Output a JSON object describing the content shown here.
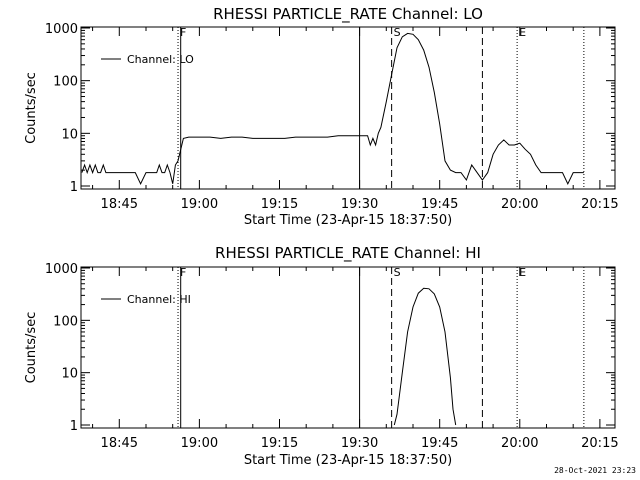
{
  "chart_data": [
    {
      "type": "line",
      "title": "RHESSI PARTICLE_RATE Channel: LO",
      "xlabel": "Start Time (23-Apr-15 18:37:50)",
      "ylabel": "Counts/sec",
      "y_scale": "log",
      "ylim": [
        1,
        1000
      ],
      "xlim_minutes_of_day": [
        1117.83,
        1217.83
      ],
      "x_ticks": [
        "18:45",
        "19:00",
        "19:15",
        "19:30",
        "19:45",
        "20:00",
        "20:15"
      ],
      "y_ticks": [
        "1",
        "10",
        "100",
        "1000"
      ],
      "legend": "Channel: LO",
      "legend_position": "top-left",
      "grid": false,
      "flag_markers": [
        {
          "label": "F",
          "time": "18:56",
          "style": "dotted"
        },
        {
          "label": "",
          "time": "18:56.5",
          "style": "solid"
        },
        {
          "label": "",
          "time": "19:30",
          "style": "solid"
        },
        {
          "label": "S",
          "time": "19:36",
          "style": "dashed"
        },
        {
          "label": "",
          "time": "19:53",
          "style": "dashed"
        },
        {
          "label": "E",
          "time": "19:59.5",
          "style": "dotted"
        },
        {
          "label": "",
          "time": "20:12",
          "style": "dotted"
        }
      ],
      "series": [
        {
          "name": "Channel: LO",
          "x": [
            "18:38",
            "18:38.5",
            "18:39",
            "18:39.5",
            "18:40",
            "18:40.5",
            "18:41",
            "18:41.5",
            "18:42",
            "18:42.5",
            "18:43",
            "18:43.5",
            "18:44",
            "18:45",
            "18:46",
            "18:47",
            "18:48",
            "18:49",
            "18:50",
            "18:51",
            "18:52",
            "18:52.5",
            "18:53",
            "18:53.5",
            "18:54",
            "18:54.5",
            "18:55",
            "18:55.5",
            "18:56",
            "18:57",
            "18:58",
            "19:00",
            "19:02",
            "19:04",
            "19:06",
            "19:08",
            "19:10",
            "19:12",
            "19:14",
            "19:16",
            "19:18",
            "19:20",
            "19:22",
            "19:24",
            "19:26",
            "19:28",
            "19:29.5",
            "19:30.5",
            "19:31.5",
            "19:32",
            "19:32.5",
            "19:33",
            "19:33.5",
            "19:34",
            "19:35",
            "19:36",
            "19:37",
            "19:38",
            "19:39",
            "19:40",
            "19:41",
            "19:42",
            "19:43",
            "19:44",
            "19:45",
            "19:46",
            "19:47",
            "19:48",
            "19:49",
            "19:50",
            "19:51",
            "19:52",
            "19:53",
            "19:54",
            "19:55",
            "19:56",
            "19:57",
            "19:58",
            "19:59",
            "20:00",
            "20:01",
            "20:02",
            "20:03",
            "20:04",
            "20:05",
            "20:06",
            "20:07",
            "20:08",
            "20:09",
            "20:10",
            "20:11",
            "20:12"
          ],
          "values": [
            1.8,
            2.5,
            1.8,
            2.5,
            1.8,
            2.5,
            1.8,
            1.8,
            2.5,
            1.8,
            1.8,
            1.8,
            1.8,
            1.8,
            1.8,
            1.8,
            1.8,
            1.1,
            1.8,
            1.8,
            1.8,
            2.5,
            1.8,
            1.8,
            2.5,
            1.8,
            1.1,
            2.5,
            3.0,
            8,
            8.5,
            8.5,
            8.5,
            8,
            8.5,
            8.5,
            8,
            8,
            8,
            8,
            8.5,
            8.5,
            8.5,
            8.5,
            9,
            9,
            9,
            9,
            9,
            6,
            8,
            6,
            10,
            13,
            40,
            130,
            420,
            680,
            790,
            760,
            600,
            380,
            180,
            60,
            15,
            3.0,
            2.0,
            1.8,
            1.8,
            1.3,
            2.5,
            1.8,
            1.3,
            1.8,
            4,
            6,
            7.5,
            6,
            6,
            6.5,
            5,
            4,
            2.5,
            1.8,
            1.8,
            1.8,
            1.8,
            1.8,
            1.1,
            1.8,
            1.8,
            1.8
          ]
        }
      ]
    },
    {
      "type": "line",
      "title": "RHESSI PARTICLE_RATE Channel: HI",
      "xlabel": "Start Time (23-Apr-15 18:37:50)",
      "ylabel": "Counts/sec",
      "y_scale": "log",
      "ylim": [
        1,
        1000
      ],
      "xlim_minutes_of_day": [
        1117.83,
        1217.83
      ],
      "x_ticks": [
        "18:45",
        "19:00",
        "19:15",
        "19:30",
        "19:45",
        "20:00",
        "20:15"
      ],
      "y_ticks": [
        "1",
        "10",
        "100",
        "1000"
      ],
      "legend": "Channel: HI",
      "legend_position": "top-left",
      "grid": false,
      "flag_markers": [
        {
          "label": "F",
          "time": "18:56",
          "style": "dotted"
        },
        {
          "label": "",
          "time": "18:56.5",
          "style": "solid"
        },
        {
          "label": "",
          "time": "19:30",
          "style": "solid"
        },
        {
          "label": "S",
          "time": "19:36",
          "style": "dashed"
        },
        {
          "label": "",
          "time": "19:53",
          "style": "dashed"
        },
        {
          "label": "E",
          "time": "19:59.5",
          "style": "dotted"
        },
        {
          "label": "",
          "time": "20:12",
          "style": "dotted"
        }
      ],
      "series": [
        {
          "name": "Channel: HI",
          "x": [
            "19:36.5",
            "19:37",
            "19:38",
            "19:39",
            "19:40",
            "19:41",
            "19:42",
            "19:43",
            "19:44",
            "19:45",
            "19:46",
            "19:47",
            "19:47.5",
            "19:48"
          ],
          "values": [
            1,
            1.6,
            10,
            60,
            180,
            330,
            410,
            400,
            320,
            180,
            60,
            8,
            2,
            1
          ]
        }
      ]
    }
  ],
  "timestamp": "28-Oct-2021 23:23"
}
